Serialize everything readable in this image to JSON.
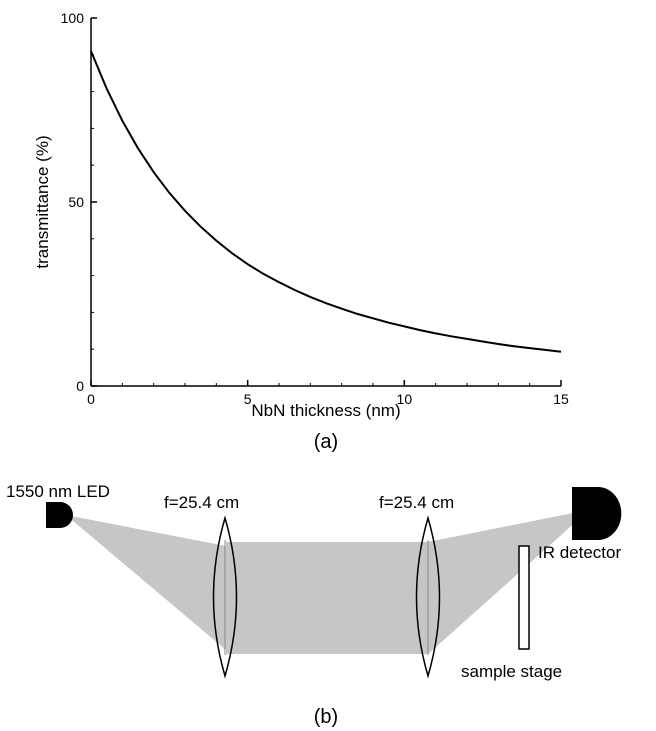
{
  "chart_data": {
    "type": "line",
    "xlabel": "NbN thickness (nm)",
    "ylabel": "transmittance (%)",
    "xlim": [
      0,
      15
    ],
    "ylim": [
      0,
      100
    ],
    "x_ticks": [
      "0",
      "5",
      "10",
      "15"
    ],
    "y_ticks": [
      "0",
      "50",
      "100"
    ],
    "grid": false,
    "x": [
      0,
      0.5,
      1,
      1.5,
      2,
      2.5,
      3,
      3.5,
      4,
      4.5,
      5,
      5.5,
      6,
      6.5,
      7,
      7.5,
      8,
      8.5,
      9,
      9.5,
      10,
      10.5,
      11,
      11.5,
      12,
      12.5,
      13,
      13.5,
      14,
      14.5,
      15
    ],
    "series": [
      {
        "values": [
          91,
          80.8,
          72.1,
          64.6,
          58.1,
          52.5,
          47.6,
          43.3,
          39.5,
          36.1,
          33.1,
          30.5,
          28.2,
          26.1,
          24.2,
          22.5,
          21.0,
          19.6,
          18.4,
          17.2,
          16.2,
          15.2,
          14.3,
          13.5,
          12.8,
          12.1,
          11.4,
          10.8,
          10.3,
          9.8,
          9.3
        ]
      }
    ]
  },
  "captions": {
    "a": "(a)",
    "b": "(b)"
  },
  "diagram": {
    "source_label": "1550 nm LED",
    "lens1_label": "f=25.4 cm",
    "lens2_label": "f=25.4 cm",
    "detector_label": "IR detector",
    "sample_label": "sample stage"
  }
}
